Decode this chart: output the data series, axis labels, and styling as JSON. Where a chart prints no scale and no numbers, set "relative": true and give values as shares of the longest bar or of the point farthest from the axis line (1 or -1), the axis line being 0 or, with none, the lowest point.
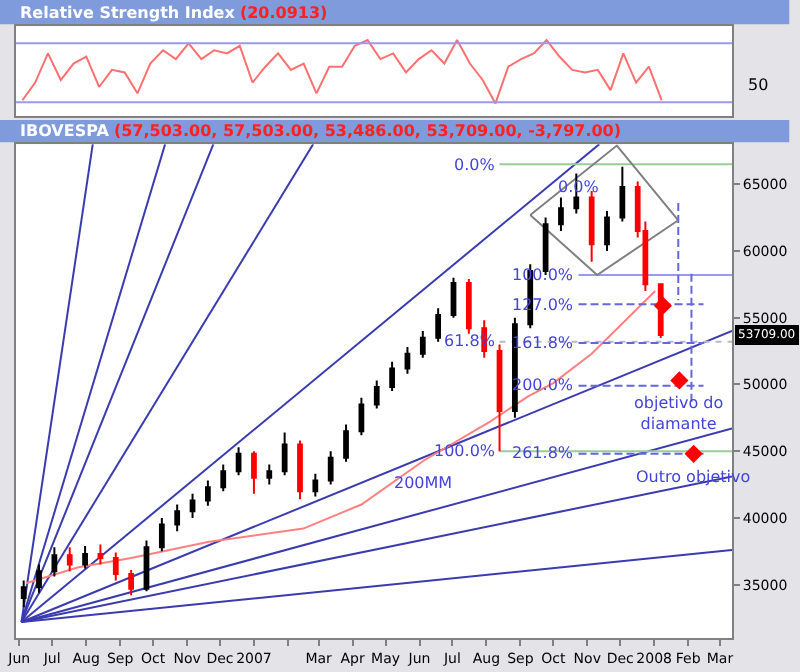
{
  "chart_data": [
    {
      "type": "line",
      "title": "Relative Strength Index",
      "subtitle": "(20.0913)",
      "relative": true,
      "categories": [
        null,
        null,
        null,
        null,
        null,
        null,
        null,
        null,
        null,
        null,
        null,
        null,
        null,
        null,
        null,
        null,
        null,
        null,
        null,
        null,
        null,
        null,
        null,
        null,
        null,
        null,
        null,
        null,
        null,
        null,
        null,
        null,
        null,
        null,
        null,
        null,
        null,
        null,
        null,
        null,
        null,
        null,
        null,
        null,
        null,
        null,
        null,
        null,
        null,
        null,
        null,
        null,
        null,
        null,
        null,
        null
      ],
      "series": [
        {
          "color": "#ff7070",
          "values": [
            0.05,
            0.33,
            0.79,
            0.37,
            0.63,
            0.74,
            0.26,
            0.53,
            0.49,
            0.16,
            0.63,
            0.84,
            0.7,
            0.95,
            0.7,
            0.84,
            0.79,
            0.91,
            0.33,
            0.58,
            0.79,
            0.53,
            0.63,
            0.16,
            0.58,
            0.58,
            0.91,
            1,
            0.7,
            0.79,
            0.49,
            0.7,
            0.84,
            0.63,
            1,
            0.63,
            0.37,
            0,
            0.58,
            0.7,
            0.79,
            1,
            0.74,
            0.53,
            0.49,
            0.53,
            0.21,
            0.79,
            0.33,
            0.58,
            0.05,
            null,
            null,
            null,
            null,
            null
          ]
        }
      ],
      "ref_lines": [
        {
          "axis": "y",
          "value": 0.02,
          "color": "#9999ee"
        },
        {
          "axis": "y",
          "value": 0.95,
          "color": "#9999ee"
        }
      ],
      "annotations": [
        "50"
      ]
    },
    {
      "type": "candlestick",
      "title": "IBOVESPA",
      "subtitle": "(57,503.00, 57,503.00, 53,486.00, 53,709.00, -3,797.00)",
      "x": [
        "2006-06-05",
        "2006-06-19",
        "2006-07-03",
        "2006-07-17",
        "2006-07-31",
        "2006-08-14",
        "2006-08-28",
        "2006-09-11",
        "2006-09-25",
        "2006-10-09",
        "2006-10-23",
        "2006-11-06",
        "2006-11-20",
        "2006-12-04",
        "2006-12-18",
        "2007-01-01",
        "2007-01-15",
        "2007-01-29",
        "2007-02-12",
        "2007-02-26",
        "2007-03-12",
        "2007-03-26",
        "2007-04-09",
        "2007-04-23",
        "2007-05-07",
        "2007-05-21",
        "2007-06-04",
        "2007-06-18",
        "2007-07-02",
        "2007-07-16",
        "2007-07-30",
        "2007-08-13",
        "2007-08-27",
        "2007-09-10",
        "2007-09-24",
        "2007-10-08",
        "2007-10-22",
        "2007-11-05",
        "2007-11-19",
        "2007-12-03",
        "2007-12-17",
        "2007-12-24",
        "2008-01-07"
      ],
      "ohlc": [
        [
          34000,
          35300,
          33300,
          34800
        ],
        [
          34800,
          36500,
          34400,
          36000
        ],
        [
          36000,
          37800,
          35600,
          37200
        ],
        [
          37200,
          37800,
          36000,
          36500
        ],
        [
          36500,
          37900,
          36200,
          37300
        ],
        [
          37300,
          38000,
          36500,
          37000
        ],
        [
          37000,
          37400,
          35300,
          35800
        ],
        [
          35800,
          36100,
          34200,
          34700
        ],
        [
          34700,
          38300,
          34500,
          37800
        ],
        [
          37800,
          40000,
          37500,
          39500
        ],
        [
          39500,
          41000,
          39000,
          40500
        ],
        [
          40500,
          41800,
          40000,
          41300
        ],
        [
          41300,
          42800,
          40900,
          42300
        ],
        [
          42300,
          44000,
          42000,
          43500
        ],
        [
          43500,
          45300,
          43200,
          44800
        ],
        [
          44800,
          45000,
          41800,
          43000
        ],
        [
          43000,
          44000,
          42500,
          43500
        ],
        [
          43500,
          46400,
          43200,
          45500
        ],
        [
          45500,
          45800,
          41400,
          42000
        ],
        [
          42000,
          43300,
          41600,
          42800
        ],
        [
          42800,
          45000,
          42500,
          44500
        ],
        [
          44500,
          47000,
          44200,
          46500
        ],
        [
          46500,
          49000,
          46200,
          48500
        ],
        [
          48500,
          50300,
          48200,
          49800
        ],
        [
          49800,
          51700,
          49500,
          51200
        ],
        [
          51200,
          52800,
          50800,
          52300
        ],
        [
          52300,
          54000,
          52000,
          53500
        ],
        [
          53500,
          55700,
          53200,
          55200
        ],
        [
          55200,
          58000,
          55000,
          57600
        ],
        [
          57600,
          57900,
          53800,
          54200
        ],
        [
          54200,
          54800,
          52000,
          52500
        ],
        [
          52500,
          53000,
          45000,
          48000
        ],
        [
          48000,
          55000,
          47500,
          54500
        ],
        [
          54500,
          59000,
          54200,
          58500
        ],
        [
          58500,
          62500,
          58200,
          62000
        ],
        [
          62000,
          64000,
          61500,
          63200
        ],
        [
          63200,
          65800,
          62800,
          64000
        ],
        [
          64000,
          64500,
          59200,
          60500
        ],
        [
          60500,
          63000,
          60000,
          62500
        ],
        [
          62500,
          66300,
          62200,
          64800
        ],
        [
          64800,
          65200,
          61000,
          61500
        ],
        [
          61500,
          62200,
          57000,
          57503
        ],
        [
          57503,
          57503,
          53486,
          53709
        ]
      ],
      "colors": [
        "#000000",
        "#000000",
        "#000000",
        "#ff0000",
        "#000000",
        "#ff0000",
        "#ff0000",
        "#ff0000",
        "#000000",
        "#000000",
        "#000000",
        "#000000",
        "#000000",
        "#000000",
        "#000000",
        "#ff0000",
        "#000000",
        "#000000",
        "#ff0000",
        "#000000",
        "#000000",
        "#000000",
        "#000000",
        "#000000",
        "#000000",
        "#000000",
        "#000000",
        "#000000",
        "#000000",
        "#ff0000",
        "#ff0000",
        "#ff0000",
        "#000000",
        "#000000",
        "#000000",
        "#000000",
        "#000000",
        "#ff0000",
        "#000000",
        "#000000",
        "#ff0000",
        "#ff0000",
        "#ff0000"
      ],
      "series": [
        {
          "type": "line",
          "color": "#3b3bb0",
          "x": [
            "2006-06-03",
            "2006-08-07"
          ],
          "values": [
            32200,
            68000
          ]
        },
        {
          "type": "line",
          "color": "#3b3bb0",
          "x": [
            "2006-06-03",
            "2006-10-12"
          ],
          "values": [
            32200,
            68000
          ]
        },
        {
          "type": "line",
          "color": "#3b3bb0",
          "x": [
            "2006-06-03",
            "2006-11-25"
          ],
          "values": [
            32200,
            68000
          ]
        },
        {
          "type": "line",
          "color": "#3b3bb0",
          "x": [
            "2006-06-03",
            "2007-02-24"
          ],
          "values": [
            32200,
            68000
          ]
        },
        {
          "type": "line",
          "color": "#3b3bb0",
          "x": [
            "2006-06-03",
            "2007-11-12"
          ],
          "values": [
            32200,
            68000
          ]
        },
        {
          "type": "line",
          "color": "#3b3bb0",
          "x": [
            "2006-06-03",
            "2008-03-12"
          ],
          "values": [
            32200,
            54000
          ]
        },
        {
          "type": "line",
          "color": "#3b3bb0",
          "x": [
            "2006-06-03",
            "2008-03-12"
          ],
          "values": [
            32200,
            46700
          ]
        },
        {
          "type": "line",
          "color": "#3b3bb0",
          "x": [
            "2006-06-03",
            "2008-03-12"
          ],
          "values": [
            32200,
            43100
          ]
        },
        {
          "type": "line",
          "color": "#3b3bb0",
          "x": [
            "2006-06-03",
            "2008-03-12"
          ],
          "values": [
            32200,
            37600
          ]
        },
        {
          "type": "line",
          "color": "#ff8080",
          "x": [
            "2006-06-07",
            "2006-07-25",
            "2006-09-11",
            "2006-11-20",
            "2007-02-15",
            "2007-04-09",
            "2007-06-05",
            "2007-08-04",
            "2007-09-08",
            "2007-10-01",
            "2007-11-05",
            "2008-01-02"
          ],
          "values": [
            35100,
            36300,
            37000,
            38200,
            39200,
            41000,
            44300,
            47200,
            49100,
            50100,
            52300,
            57000
          ]
        },
        {
          "type": "line",
          "color": "#99cc99",
          "x": [
            "2007-08-13",
            "2008-03-12"
          ],
          "values": [
            66500,
            66500
          ]
        },
        {
          "type": "line",
          "color": "#99cc99",
          "x": [
            "2007-08-13",
            "2008-03-12"
          ],
          "values": [
            45000,
            45000
          ]
        },
        {
          "type": "line",
          "color": "#bbbbbb",
          "line_style": "dotted",
          "x": [
            "2007-08-13",
            "2008-03-12"
          ],
          "values": [
            53200,
            53200
          ]
        },
        {
          "type": "line",
          "color": "#9999ee",
          "x": [
            "2007-10-24",
            "2008-03-12"
          ],
          "values": [
            58200,
            58200
          ]
        },
        {
          "type": "line",
          "color": "#6666dd",
          "line_style": "dashed",
          "x": [
            "2007-10-24",
            "2008-02-15"
          ],
          "values": [
            56000,
            56000
          ]
        },
        {
          "type": "line",
          "color": "#6666dd",
          "line_style": "dashed",
          "x": [
            "2007-10-24",
            "2008-02-15"
          ],
          "values": [
            53100,
            53100
          ]
        },
        {
          "type": "line",
          "color": "#6666dd",
          "line_style": "dashed",
          "x": [
            "2007-10-24",
            "2008-02-15"
          ],
          "values": [
            49900,
            49900
          ]
        },
        {
          "type": "line",
          "color": "#6666dd",
          "line_style": "dashed",
          "x": [
            "2007-10-24",
            "2008-02-15"
          ],
          "values": [
            44800,
            44800
          ]
        },
        {
          "type": "line",
          "color": "#808080",
          "x": [
            "2007-09-10",
            "2007-11-28",
            "2008-01-23"
          ],
          "values": [
            62700,
            67900,
            62300
          ]
        },
        {
          "type": "line",
          "color": "#808080",
          "x": [
            "2007-09-10",
            "2007-11-10",
            "2008-01-23"
          ],
          "values": [
            62700,
            58200,
            62300
          ]
        },
        {
          "type": "line",
          "color": "#6666dd",
          "line_style": "dashed",
          "x": [
            "2008-01-23",
            "2008-01-23"
          ],
          "values": [
            63600,
            56300
          ]
        },
        {
          "type": "line",
          "color": "#6666dd",
          "line_style": "dashed",
          "x": [
            "2008-02-04",
            "2008-02-04"
          ],
          "values": [
            58300,
            48600
          ]
        },
        {
          "type": "scatter",
          "color": "#ff0000",
          "marker": "diamond",
          "x": [
            "2008-01-09",
            "2008-01-24",
            "2008-02-06"
          ],
          "values": [
            55900,
            50300,
            44800
          ]
        }
      ],
      "annotations": [
        {
          "text": "0.0%",
          "x": "2007-08-13",
          "y": 66500
        },
        {
          "text": "0.0%",
          "x": "2007-10-24",
          "y": 66500
        },
        {
          "text": "100.0%",
          "x": "2007-10-24",
          "y": 58200
        },
        {
          "text": "127.0%",
          "x": "2007-10-24",
          "y": 56000
        },
        {
          "text": "61.8%",
          "x": "2007-08-13",
          "y": 53200
        },
        {
          "text": "161.8%",
          "x": "2007-10-24",
          "y": 53100
        },
        {
          "text": "200.0%",
          "x": "2007-10-24",
          "y": 49900
        },
        {
          "text": "100.0%",
          "x": "2007-08-13",
          "y": 45000
        },
        {
          "text": "261.8%",
          "x": "2007-10-24",
          "y": 44800
        },
        {
          "text": "objetivo do\ndiamante",
          "x": "2008-01-24",
          "y": 50300
        },
        {
          "text": "Outro objetivo",
          "x": "2008-02-06",
          "y": 44800
        },
        {
          "text": "200MM",
          "x": "2007-06-05",
          "y": 44300
        },
        "53709.00"
      ],
      "xlim": [
        "2006-05-29",
        "2008-03-12"
      ],
      "xticks": [
        {
          "value": "2006-06-01",
          "label": "Jun"
        },
        {
          "value": "2006-07-01",
          "label": "Jul"
        },
        {
          "value": "2006-08-01",
          "label": "Aug"
        },
        {
          "value": "2006-09-01",
          "label": "Sep"
        },
        {
          "value": "2006-10-01",
          "label": "Oct"
        },
        {
          "value": "2006-11-01",
          "label": "Nov"
        },
        {
          "value": "2006-12-01",
          "label": "Dec"
        },
        {
          "value": "2007-01-01",
          "label": "2007"
        },
        {
          "value": "2007-02-01",
          "label": null
        },
        {
          "value": "2007-03-01",
          "label": "Mar"
        },
        {
          "value": "2007-04-01",
          "label": "Apr"
        },
        {
          "value": "2007-05-01",
          "label": "May"
        },
        {
          "value": "2007-06-01",
          "label": "Jun"
        },
        {
          "value": "2007-07-01",
          "label": "Jul"
        },
        {
          "value": "2007-08-01",
          "label": "Aug"
        },
        {
          "value": "2007-09-01",
          "label": "Sep"
        },
        {
          "value": "2007-10-01",
          "label": "Oct"
        },
        {
          "value": "2007-11-01",
          "label": "Nov"
        },
        {
          "value": "2007-12-01",
          "label": "Dec"
        },
        {
          "value": "2008-01-01",
          "label": "2008"
        },
        {
          "value": "2008-02-01",
          "label": "Feb"
        },
        {
          "value": "2008-03-01",
          "label": "Mar"
        }
      ],
      "ylim": [
        31000,
        68000
      ],
      "yticks": [
        35000,
        40000,
        45000,
        50000,
        55000,
        60000,
        65000
      ]
    }
  ]
}
